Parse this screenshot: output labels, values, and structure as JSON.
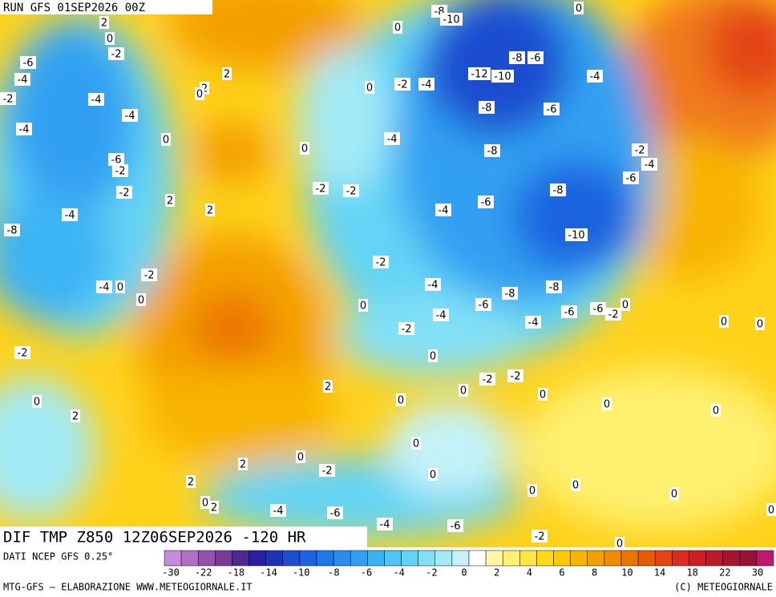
{
  "header": {
    "run": "RUN GFS 01SEP2026 00Z"
  },
  "map": {
    "title": "DIF TMP Z850 12Z06SEP2026 -120 HR",
    "contour_labels": [
      2,
      0,
      -2,
      -6,
      -4,
      -2,
      -4,
      -4,
      -4,
      0,
      -6,
      -2,
      -2,
      2,
      2,
      -4,
      -8,
      -4,
      0,
      -2,
      0,
      -2,
      0,
      2,
      2,
      2,
      0,
      0,
      0,
      0,
      -8,
      -10,
      0,
      -8,
      -6,
      -12,
      -10,
      -4,
      -2,
      -4,
      -8,
      -6,
      -4,
      -8,
      -2,
      -4,
      -6,
      -2,
      -2,
      -8,
      -6,
      -4,
      -10,
      -2,
      -4,
      -8,
      -8,
      0,
      -6,
      -4,
      -6,
      -4,
      -6,
      -2,
      0,
      -2,
      0,
      0,
      0,
      -2,
      -2,
      0,
      2,
      0,
      0,
      0,
      0,
      0,
      0,
      2,
      -2,
      0,
      2,
      0,
      2,
      -4,
      -6,
      0,
      0,
      0,
      0,
      -4,
      -6,
      -2,
      0
    ]
  },
  "legend": {
    "source": "DATI NCEP GFS 0.25°",
    "colors": [
      "#c88bd8",
      "#b070c8",
      "#9850b0",
      "#783c98",
      "#4a2a90",
      "#2a1ea0",
      "#1e32b8",
      "#1e4ed0",
      "#1e64e0",
      "#2078ec",
      "#288cf0",
      "#32a0f2",
      "#3cb4f4",
      "#4ec6f6",
      "#64d4f6",
      "#82e0f6",
      "#a2eaf6",
      "#c4f2f8",
      "#ffffff",
      "#fff6a8",
      "#fff070",
      "#ffe640",
      "#ffd81a",
      "#ffc800",
      "#f8b400",
      "#f4a000",
      "#f08c00",
      "#ec7400",
      "#e85c00",
      "#e44418",
      "#dc2c1e",
      "#cc1e24",
      "#bc1a2c",
      "#a81430",
      "#961238",
      "#c0186c"
    ],
    "ticks": [
      -30,
      -22,
      -18,
      -14,
      -10,
      -8,
      -6,
      -4,
      -2,
      0,
      2,
      4,
      6,
      8,
      10,
      14,
      18,
      22,
      30
    ]
  },
  "footer": {
    "left": "MTG-GFS — ELABORAZIONE WWW.METEOGIORNALE.IT",
    "right": "(C) METEOGIORNALE"
  }
}
